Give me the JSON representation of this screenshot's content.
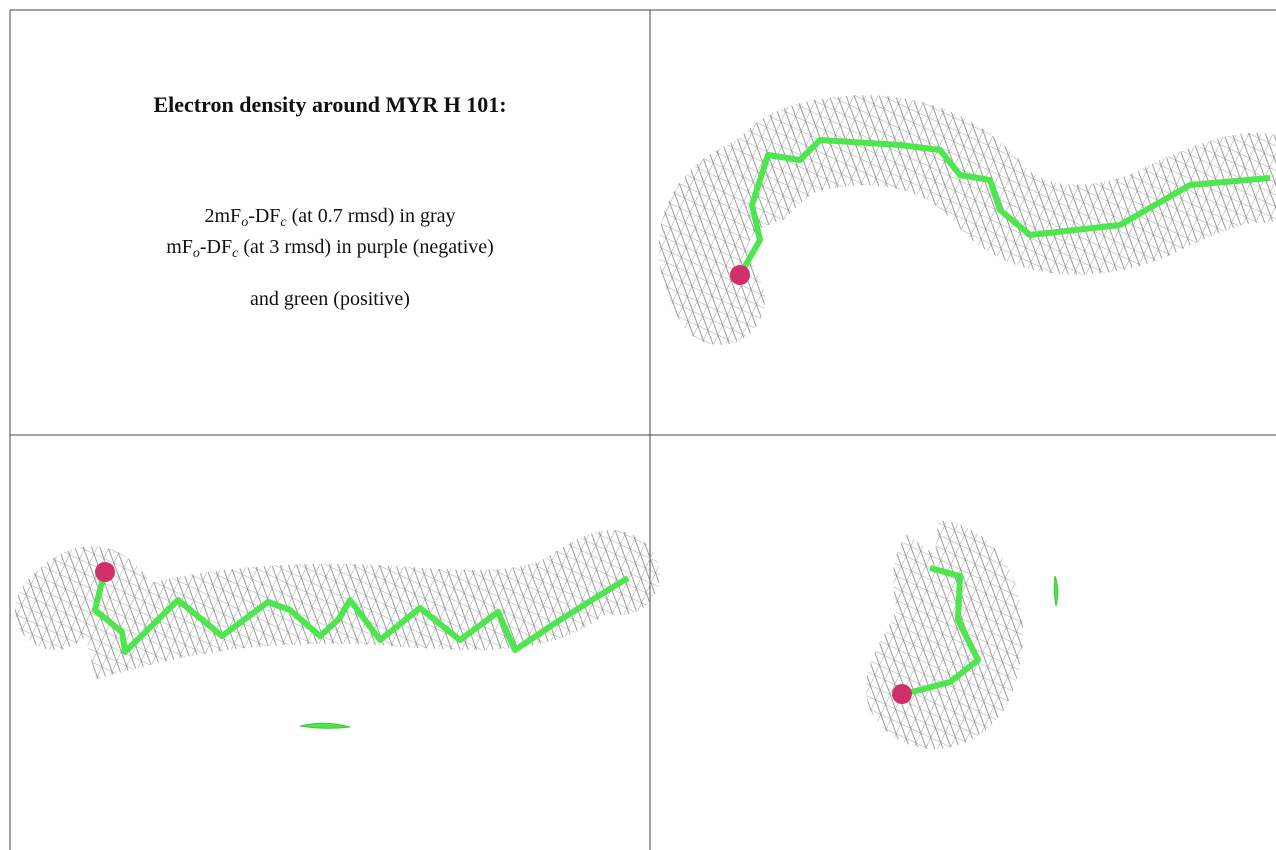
{
  "title": "Electron density around MYR H 101:",
  "lines": [
    [
      "2mF",
      "o",
      "-DF",
      "c",
      " (at 0.7 rmsd) in gray"
    ],
    [
      "mF",
      "o",
      "-DF",
      "c",
      " (at 3 rmsd) in purple (negative)"
    ],
    [
      "and green (positive)"
    ]
  ]
}
